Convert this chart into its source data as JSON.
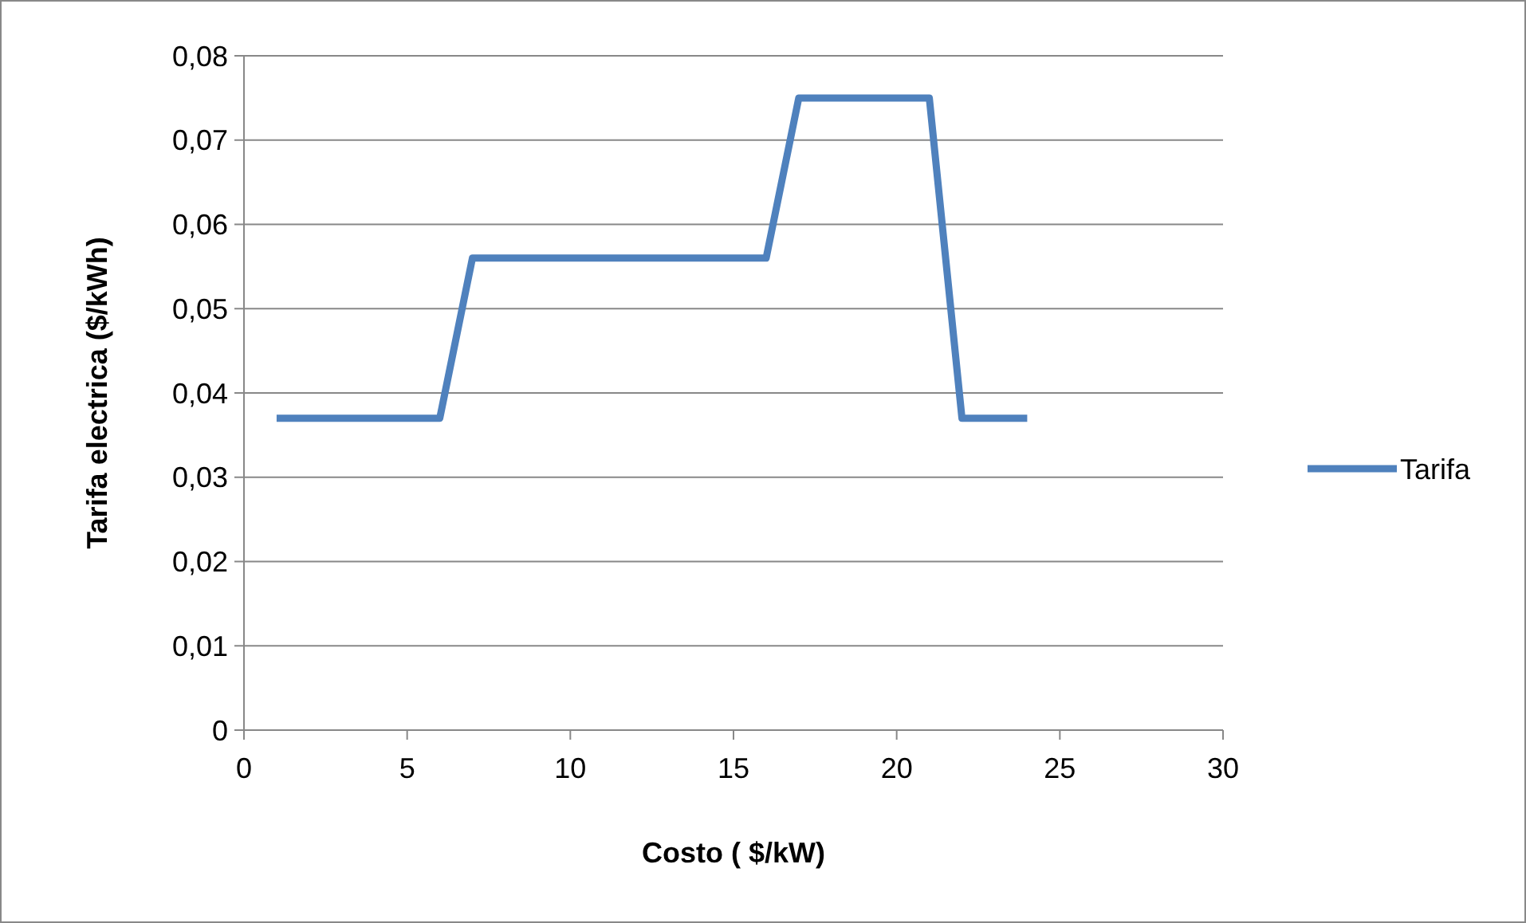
{
  "chart_data": {
    "type": "line",
    "xlabel": "Costo ( $/kW)",
    "ylabel": "Tarifa electrica ($/kWh)",
    "x": [
      1,
      2,
      3,
      4,
      5,
      6,
      7,
      8,
      9,
      10,
      11,
      12,
      13,
      14,
      15,
      16,
      17,
      18,
      19,
      20,
      21,
      22,
      23,
      24
    ],
    "series": [
      {
        "name": "Tarifa",
        "color": "#4f81bd",
        "values": [
          0.037,
          0.037,
          0.037,
          0.037,
          0.037,
          0.037,
          0.056,
          0.056,
          0.056,
          0.056,
          0.056,
          0.056,
          0.056,
          0.056,
          0.056,
          0.056,
          0.075,
          0.075,
          0.075,
          0.075,
          0.075,
          0.037,
          0.037,
          0.037
        ]
      }
    ],
    "xlim": [
      0,
      30
    ],
    "xticks": [
      0,
      5,
      10,
      15,
      20,
      25,
      30
    ],
    "ylim": [
      0,
      0.08
    ],
    "yticks": [
      {
        "value": 0,
        "label": "0"
      },
      {
        "value": 0.01,
        "label": "0,01"
      },
      {
        "value": 0.02,
        "label": "0,02"
      },
      {
        "value": 0.03,
        "label": "0,03"
      },
      {
        "value": 0.04,
        "label": "0,04"
      },
      {
        "value": 0.05,
        "label": "0,05"
      },
      {
        "value": 0.06,
        "label": "0,06"
      },
      {
        "value": 0.07,
        "label": "0,07"
      },
      {
        "value": 0.08,
        "label": "0,08"
      }
    ],
    "grid": "y",
    "legend": "right",
    "marker": "none",
    "line_style": "solid"
  }
}
